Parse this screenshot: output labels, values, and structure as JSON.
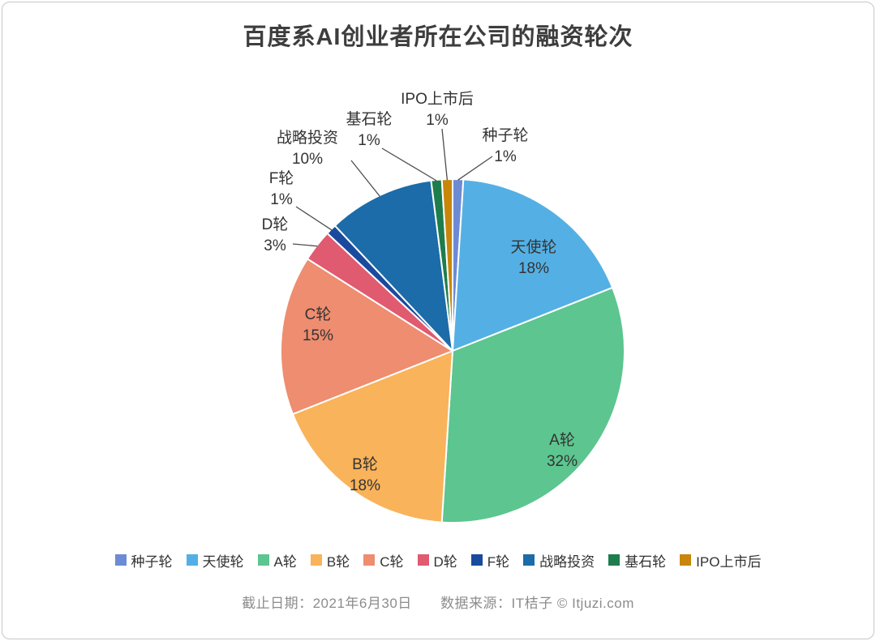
{
  "title": "百度系AI创业者所在公司的融资轮次",
  "footer": {
    "date": "截止日期：2021年6月30日",
    "source": "数据来源：IT桔子 © Itjuzi.com"
  },
  "chart_data": {
    "type": "pie",
    "title": "百度系AI创业者所在公司的融资轮次",
    "categories": [
      "种子轮",
      "天使轮",
      "A轮",
      "B轮",
      "C轮",
      "D轮",
      "F轮",
      "战略投资",
      "基石轮",
      "IPO上市后"
    ],
    "values": [
      1,
      18,
      32,
      18,
      15,
      3,
      1,
      10,
      1,
      1
    ],
    "unit": "%",
    "colors": [
      "#6d8bd4",
      "#54b0e4",
      "#5dc58f",
      "#f9b35a",
      "#ee8d70",
      "#e05a70",
      "#1a4a9e",
      "#1b6ca8",
      "#1e7d4c",
      "#c8860b"
    ],
    "start_angle_deg": -90,
    "direction": "clockwise",
    "label_format": "{name}\n{value}%",
    "legend_position": "bottom",
    "slice_border_color": "#ffffff"
  }
}
